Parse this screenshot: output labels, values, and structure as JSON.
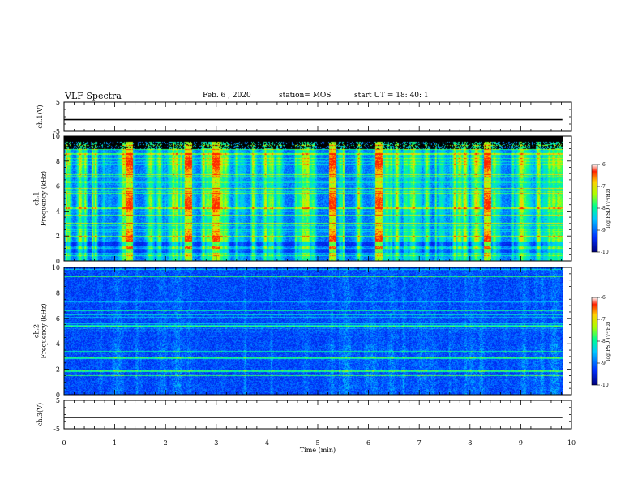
{
  "header": {
    "title": "VLF Spectra",
    "date": "Feb. 6  , 2020",
    "station": "station= MOS",
    "start_time": "start  UT =   18: 40: 1"
  },
  "chart_data": [
    {
      "type": "line",
      "panel": "ch1-voltage",
      "ylabel": "ch.1(V)",
      "ylim": [
        -5,
        5
      ],
      "yticks": [
        "5",
        "-5"
      ],
      "x": [
        0,
        9.82
      ],
      "series": [
        {
          "values": [
            -1,
            -1
          ]
        }
      ]
    },
    {
      "type": "heatmap",
      "panel": "ch1-spectrogram",
      "ylabel": "ch.1\nFrequency (kHz)",
      "ylim": [
        0,
        10
      ],
      "yticks": [
        "0",
        "2",
        "4",
        "6",
        "8",
        "10"
      ],
      "xlim": [
        0,
        10
      ],
      "data_extent_x": 9.82,
      "colorbar": {
        "label": "log(PSD)(V²/Hz)",
        "range": [
          -10,
          -6
        ],
        "ticks": [
          "-6",
          "-7",
          "-8",
          "-9",
          "-10"
        ]
      },
      "description_values": {
        "background_level": -9,
        "band_top_khz": 9.0,
        "strong_bursts_min": [
          1.28,
          2.45,
          3.0,
          5.3,
          6.2,
          8.35
        ]
      }
    },
    {
      "type": "heatmap",
      "panel": "ch2-spectrogram",
      "ylabel": "ch.2\nFrequency (kHz)",
      "ylim": [
        0,
        10
      ],
      "yticks": [
        "0",
        "2",
        "4",
        "6",
        "8",
        "10"
      ],
      "xlim": [
        0,
        10
      ],
      "data_extent_x": 9.82,
      "colorbar": {
        "label": "log(PSD)(V²/Hz)",
        "range": [
          -10,
          -6
        ],
        "ticks": [
          "-6",
          "-7",
          "-8",
          "-9",
          "-10"
        ]
      },
      "description_values": {
        "background_level": -9.3,
        "line_frequencies_khz": [
          9.3,
          5.4,
          2.9,
          1.9,
          1.5
        ]
      }
    },
    {
      "type": "line",
      "panel": "ch3-voltage",
      "ylabel": "ch.3(V)",
      "ylim": [
        -5,
        5
      ],
      "yticks": [
        "5",
        "-5"
      ],
      "x": [
        0,
        9.82
      ],
      "series": [
        {
          "values": [
            -1,
            -1
          ]
        }
      ]
    }
  ],
  "xaxis": {
    "label": "Time  (min)",
    "ticks": [
      "0",
      "1",
      "2",
      "3",
      "4",
      "5",
      "6",
      "7",
      "8",
      "9",
      "10"
    ]
  },
  "colors": {
    "colormap": [
      "#00007a",
      "#0030ff",
      "#00c8ff",
      "#00ff90",
      "#aaff00",
      "#ffd000",
      "#ff2000"
    ]
  }
}
